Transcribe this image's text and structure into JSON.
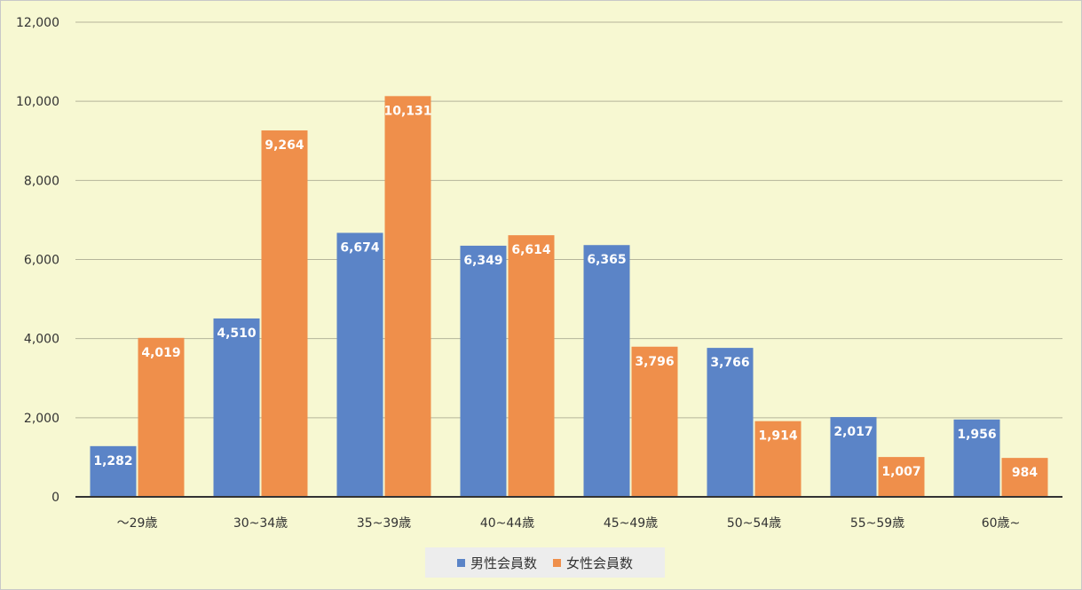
{
  "chart_data": {
    "type": "bar",
    "categories": [
      "～29歳",
      "30~34歳",
      "35~39歳",
      "40~44歳",
      "45~49歳",
      "50~54歳",
      "55~59歳",
      "60歳~"
    ],
    "series": [
      {
        "name": "男性会員数",
        "color": "#5b84c7",
        "values": [
          1282,
          4510,
          6674,
          6349,
          6365,
          3766,
          2017,
          1956
        ],
        "labels": [
          "1,282",
          "4,510",
          "6,674",
          "6,349",
          "6,365",
          "3,766",
          "2,017",
          "1,956"
        ]
      },
      {
        "name": "女性会員数",
        "color": "#ef8f4b",
        "values": [
          4019,
          9264,
          10131,
          6614,
          3796,
          1914,
          1007,
          984
        ],
        "labels": [
          "4,019",
          "9,264",
          "10,131",
          "6,614",
          "3,796",
          "1,914",
          "1,007",
          "984"
        ]
      }
    ],
    "ylim": [
      0,
      12000
    ],
    "yticks": [
      0,
      2000,
      4000,
      6000,
      8000,
      10000,
      12000
    ],
    "ytick_labels": [
      "0",
      "2,000",
      "4,000",
      "6,000",
      "8,000",
      "10,000",
      "12,000"
    ],
    "grid": true,
    "legend_position": "bottom",
    "title": "",
    "xlabel": "",
    "ylabel": ""
  }
}
